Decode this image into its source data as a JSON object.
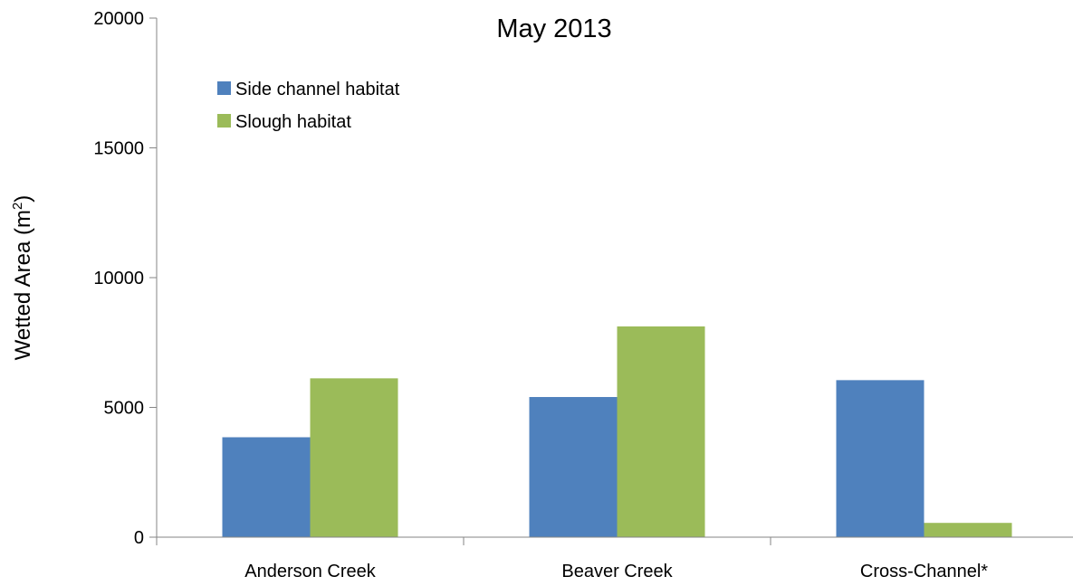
{
  "chart_data": {
    "type": "bar",
    "title": "May 2013",
    "ylabel": "Wetted Area (m",
    "ylabel_sup": "2",
    "ylabel_suffix": ")",
    "xlabel": "",
    "categories": [
      "Anderson Creek",
      "Beaver Creek",
      "Cross-Channel*"
    ],
    "series": [
      {
        "name": "Side channel habitat",
        "values": [
          3850,
          5400,
          6050
        ],
        "color": "#4F81BD"
      },
      {
        "name": "Slough habitat",
        "values": [
          6120,
          8120,
          550
        ],
        "color": "#9BBB59"
      }
    ],
    "ylim": [
      0,
      20000
    ],
    "yticks": [
      0,
      5000,
      10000,
      15000,
      20000
    ],
    "ytick_labels": [
      "0",
      "5000",
      "10000",
      "15000",
      "20000"
    ],
    "grid": false,
    "legend_position": "top-left"
  }
}
